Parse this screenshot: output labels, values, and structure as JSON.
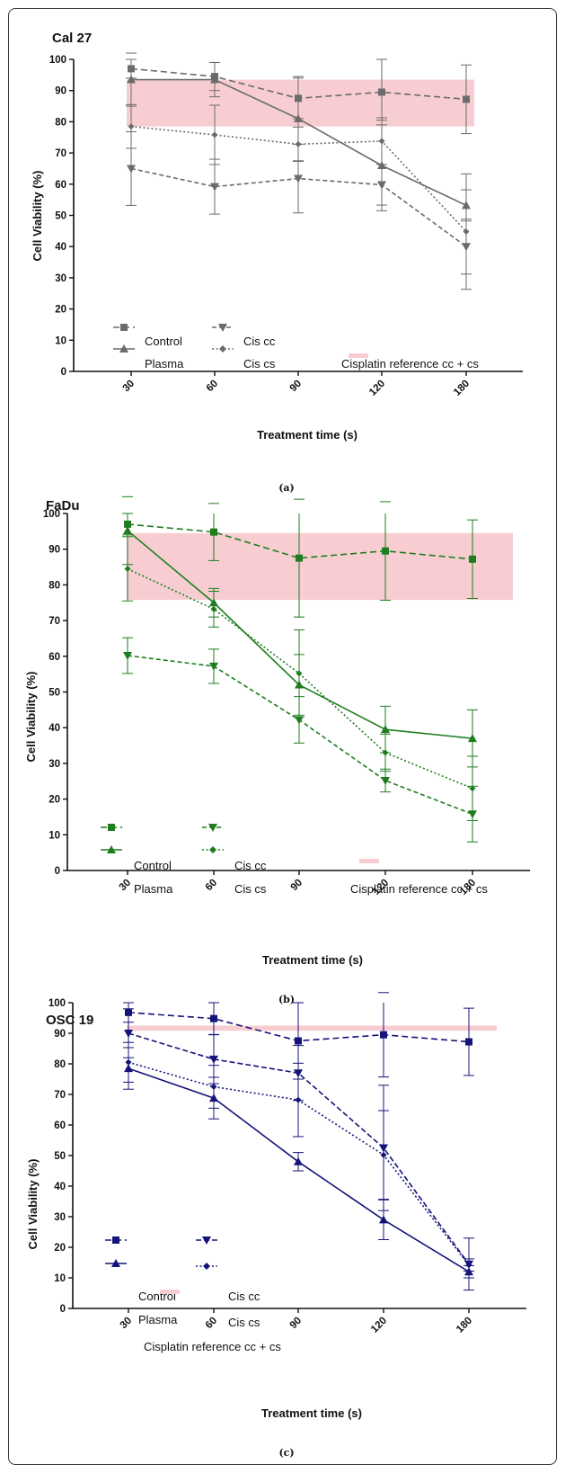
{
  "chart_data": [
    {
      "type": "line",
      "title": "Cal 27",
      "caption": "(a)",
      "xlabel": "Treatment time (s)",
      "ylabel": "Cell Viability (%)",
      "categories": [
        "30",
        "60",
        "90",
        "120",
        "180"
      ],
      "ylim": [
        0,
        100
      ],
      "yticks": [
        0,
        10,
        20,
        30,
        40,
        50,
        60,
        70,
        80,
        90,
        100
      ],
      "color": "#6b6b6b",
      "reference_band": {
        "label": "Cisplatin reference cc + cs",
        "ymin": 78.5,
        "ymax": 93.5,
        "color": "#f7cdd2"
      },
      "series": [
        {
          "name": "Control",
          "marker": "square",
          "dash": "long",
          "values": [
            97,
            94.5,
            87.5,
            89.5,
            87.2
          ],
          "err": [
            3,
            4.5,
            6.5,
            10.5,
            11
          ]
        },
        {
          "name": "Plasma",
          "marker": "triangle",
          "dash": "solid",
          "values": [
            93.5,
            93.5,
            81,
            66,
            53.2
          ],
          "err": [
            8.5,
            5.5,
            13.5,
            14.5,
            5
          ]
        },
        {
          "name": "Cis cc",
          "marker": "triangle-down",
          "dash": "medium",
          "values": [
            65,
            59.2,
            61.8,
            59.8,
            40
          ],
          "err": [
            11.8,
            8.8,
            11,
            6.5,
            8.8
          ]
        },
        {
          "name": "Cis cs",
          "marker": "diamond",
          "dash": "dotted",
          "values": [
            78.5,
            75.8,
            72.8,
            73.8,
            44.8
          ],
          "err": [
            7,
            9.5,
            5.5,
            7.5,
            18.5
          ]
        }
      ]
    },
    {
      "type": "line",
      "title": "FaDu",
      "caption": "(b)",
      "xlabel": "Treatment time (s)",
      "ylabel": "Cell Viability (%)",
      "categories": [
        "30",
        "60",
        "90",
        "120",
        "180"
      ],
      "ylim": [
        0,
        100
      ],
      "yticks": [
        0,
        10,
        20,
        30,
        40,
        50,
        60,
        70,
        80,
        90,
        100
      ],
      "color": "#1e7d1e",
      "reference_band": {
        "label": "Cisplatin reference cc + cs",
        "ymin": 75.8,
        "ymax": 94.5,
        "color": "#f7cdd2"
      },
      "series": [
        {
          "name": "Control",
          "marker": "square",
          "dash": "long",
          "values": [
            97,
            94.8,
            87.5,
            89.5,
            87.2
          ],
          "err": [
            3,
            8,
            16.5,
            13.8,
            11
          ]
        },
        {
          "name": "Plasma",
          "marker": "triangle",
          "dash": "solid",
          "values": [
            95.2,
            75,
            52,
            39.5,
            37
          ],
          "err": [
            9.5,
            4,
            8.5,
            6.5,
            8
          ]
        },
        {
          "name": "Cis cc",
          "marker": "triangle-down",
          "dash": "medium",
          "values": [
            60.2,
            57.2,
            42.2,
            25.2,
            15.8
          ],
          "err": [
            5,
            4.8,
            6.5,
            3.2,
            7.8
          ]
        },
        {
          "name": "Cis cs",
          "marker": "diamond",
          "dash": "dotted",
          "values": [
            84.5,
            73.2,
            55.2,
            33,
            23
          ],
          "err": [
            9,
            5,
            12.2,
            5.2,
            9
          ]
        }
      ]
    },
    {
      "type": "line",
      "title": "OSC 19",
      "caption": "(c)",
      "xlabel": "Treatment time (s)",
      "ylabel": "Cell Viability (%)",
      "categories": [
        "30",
        "60",
        "90",
        "120",
        "180"
      ],
      "ylim": [
        0,
        100
      ],
      "yticks": [
        0,
        10,
        20,
        30,
        40,
        50,
        60,
        70,
        80,
        90,
        100
      ],
      "color": "#14147a",
      "reference_band": {
        "label": "Cisplatin reference cc + cs",
        "ymin": 90.8,
        "ymax": 92.5,
        "color": "#f7cdd2"
      },
      "series": [
        {
          "name": "Control",
          "marker": "square",
          "dash": "long",
          "values": [
            96.8,
            94.8,
            87.5,
            89.5,
            87.2
          ],
          "err": [
            3.2,
            5.2,
            12.5,
            13.8,
            11
          ]
        },
        {
          "name": "Plasma",
          "marker": "triangle",
          "dash": "solid",
          "values": [
            78.5,
            68.8,
            48,
            29,
            12
          ],
          "err": [
            6.8,
            6.8,
            3,
            6.5,
            2
          ]
        },
        {
          "name": "Cis cc",
          "marker": "triangle-down",
          "dash": "long-dash",
          "values": [
            90,
            81.5,
            77,
            52.5,
            14.5
          ],
          "err": [
            8,
            8,
            9,
            20.5,
            8.5
          ]
        },
        {
          "name": "Cis cs",
          "marker": "diamond",
          "dash": "dotted",
          "values": [
            80.5,
            72.5,
            68.2,
            50.2,
            14.2
          ],
          "err": [
            6.5,
            7,
            12,
            14.5,
            2
          ]
        }
      ]
    }
  ]
}
